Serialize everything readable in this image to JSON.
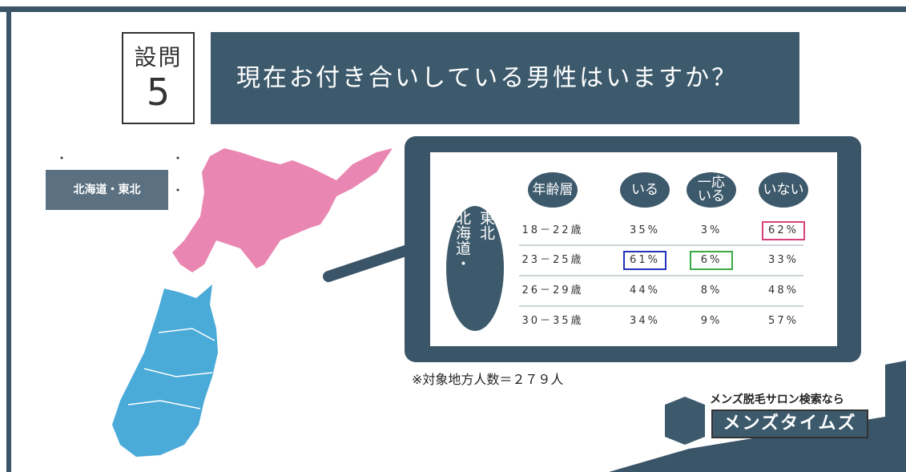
{
  "question": {
    "label": "設問",
    "number": "5",
    "title": "現在お付き合いしている男性はいますか？"
  },
  "region_tag": "北海道・東北",
  "table": {
    "region": "北海道・東北",
    "headers": [
      "年齢層",
      "いる",
      "一応\nいる",
      "いない"
    ],
    "rows": [
      [
        "18－22歳",
        "35%",
        "3%",
        "62%"
      ],
      [
        "23－25歳",
        "61%",
        "6%",
        "33%"
      ],
      [
        "26－29歳",
        "44%",
        "8%",
        "48%"
      ],
      [
        "30－35歳",
        "34%",
        "9%",
        "57%"
      ]
    ]
  },
  "note": "※対象地方人数＝２７９人",
  "logo": {
    "tagline": "メンズ脱毛サロン検索なら",
    "name": "メンズタイムズ"
  }
}
